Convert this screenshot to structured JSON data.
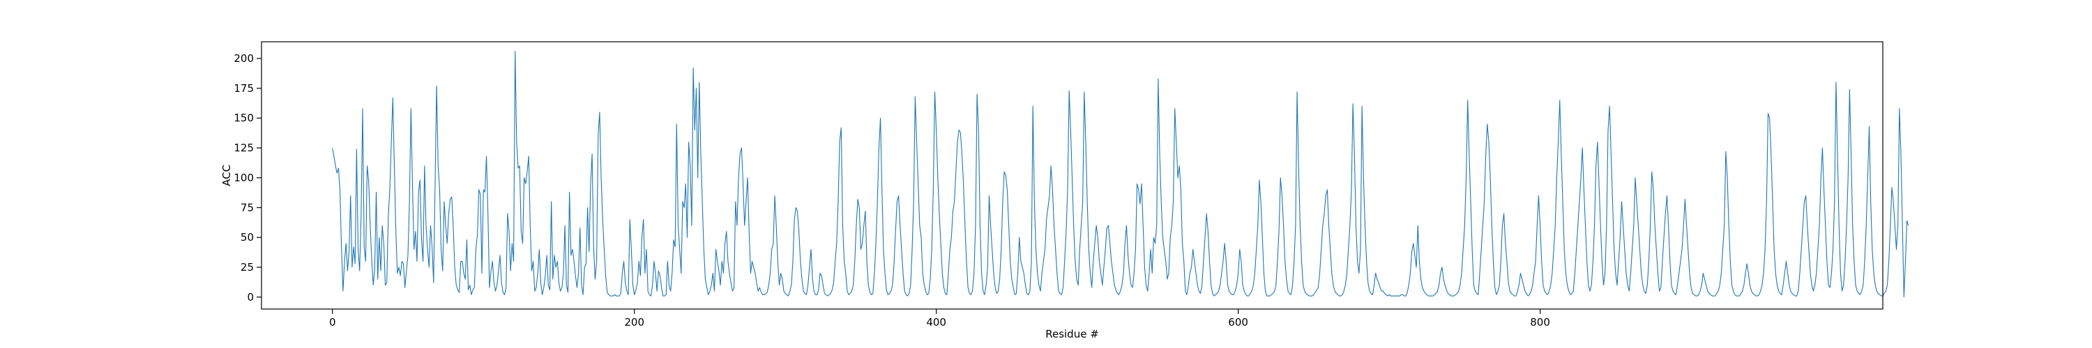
{
  "chart_data": {
    "type": "line",
    "title": "",
    "xlabel": "Residue #",
    "ylabel": "ACC",
    "xlim": [
      -47,
      1027
    ],
    "ylim": [
      -10,
      214
    ],
    "xticks": [
      0,
      200,
      400,
      600,
      800
    ],
    "yticks": [
      0,
      25,
      50,
      75,
      100,
      125,
      150,
      175,
      200
    ],
    "xtick_labels": [
      "0",
      "200",
      "400",
      "600",
      "800"
    ],
    "ytick_labels": [
      "0",
      "25",
      "50",
      "75",
      "100",
      "125",
      "150",
      "175",
      "200"
    ],
    "grid": false,
    "legend": "none",
    "series": [
      {
        "color": "#1f77b4",
        "x_start": 0,
        "x_step": 1,
        "values": [
          125,
          118,
          110,
          104,
          108,
          88,
          40,
          5,
          30,
          45,
          22,
          38,
          85,
          25,
          42,
          28,
          124,
          40,
          22,
          70,
          158,
          42,
          30,
          110,
          97,
          60,
          32,
          10,
          24,
          88,
          15,
          50,
          22,
          60,
          45,
          10,
          12,
          68,
          90,
          130,
          167,
          110,
          55,
          20,
          25,
          18,
          30,
          28,
          8,
          22,
          35,
          80,
          158,
          95,
          40,
          55,
          30,
          88,
          98,
          48,
          30,
          110,
          60,
          40,
          25,
          60,
          42,
          12,
          96,
          177,
          110,
          90,
          40,
          22,
          80,
          60,
          45,
          70,
          82,
          84,
          60,
          25,
          10,
          6,
          4,
          30,
          30,
          20,
          15,
          48,
          6,
          10,
          2,
          6,
          8,
          40,
          52,
          90,
          86,
          20,
          90,
          88,
          118,
          70,
          8,
          22,
          30,
          12,
          5,
          10,
          22,
          35,
          12,
          4,
          2,
          8,
          70,
          55,
          22,
          45,
          30,
          206,
          130,
          108,
          110,
          55,
          45,
          100,
          95,
          105,
          118,
          60,
          22,
          30,
          5,
          8,
          20,
          40,
          12,
          2,
          8,
          18,
          35,
          10,
          6,
          80,
          15,
          35,
          25,
          30,
          12,
          5,
          8,
          20,
          60,
          10,
          4,
          88,
          35,
          40,
          30,
          18,
          8,
          20,
          58,
          10,
          2,
          25,
          28,
          75,
          38,
          95,
          120,
          42,
          15,
          30,
          135,
          155,
          100,
          65,
          40,
          18,
          4,
          2,
          1,
          1,
          1,
          2,
          1,
          1,
          1,
          3,
          20,
          30,
          12,
          5,
          2,
          65,
          40,
          10,
          2,
          6,
          12,
          30,
          18,
          50,
          65,
          20,
          40,
          5,
          2,
          1,
          10,
          30,
          20,
          5,
          22,
          18,
          8,
          1,
          1,
          2,
          30,
          10,
          5,
          20,
          48,
          42,
          145,
          60,
          40,
          20,
          80,
          75,
          95,
          50,
          130,
          110,
          60,
          192,
          140,
          175,
          100,
          180,
          120,
          80,
          40,
          15,
          8,
          2,
          5,
          10,
          20,
          5,
          40,
          30,
          22,
          10,
          30,
          20,
          45,
          55,
          30,
          20,
          12,
          5,
          8,
          80,
          60,
          100,
          120,
          125,
          95,
          60,
          80,
          100,
          55,
          20,
          30,
          25,
          20,
          12,
          5,
          8,
          4,
          2,
          2,
          3,
          4,
          10,
          20,
          40,
          45,
          85,
          60,
          30,
          10,
          20,
          15,
          5,
          3,
          2,
          1,
          5,
          10,
          30,
          65,
          75,
          72,
          55,
          30,
          15,
          5,
          3,
          2,
          10,
          25,
          40,
          15,
          5,
          2,
          2,
          6,
          20,
          18,
          10,
          3,
          2,
          1,
          2,
          3,
          6,
          12,
          30,
          45,
          80,
          130,
          142,
          60,
          30,
          20,
          5,
          2,
          3,
          5,
          10,
          30,
          60,
          82,
          75,
          40,
          45,
          60,
          72,
          30,
          10,
          4,
          2,
          3,
          20,
          45,
          80,
          125,
          150,
          90,
          40,
          20,
          6,
          2,
          3,
          5,
          10,
          28,
          55,
          80,
          85,
          60,
          40,
          20,
          5,
          2,
          1,
          3,
          10,
          40,
          80,
          168,
          130,
          95,
          60,
          50,
          20,
          10,
          5,
          2,
          3,
          15,
          40,
          90,
          172,
          140,
          100,
          70,
          45,
          20,
          8,
          3,
          2,
          20,
          40,
          50,
          72,
          80,
          105,
          130,
          140,
          138,
          120,
          95,
          60,
          30,
          8,
          3,
          2,
          5,
          20,
          60,
          170,
          140,
          60,
          20,
          5,
          2,
          10,
          25,
          85,
          60,
          40,
          20,
          8,
          3,
          5,
          15,
          40,
          80,
          105,
          102,
          90,
          60,
          30,
          15,
          8,
          2,
          3,
          20,
          50,
          30,
          25,
          20,
          10,
          3,
          2,
          5,
          30,
          160,
          80,
          40,
          20,
          10,
          5,
          20,
          30,
          40,
          65,
          75,
          85,
          110,
          90,
          60,
          40,
          20,
          5,
          3,
          2,
          8,
          30,
          55,
          90,
          173,
          140,
          100,
          60,
          30,
          15,
          10,
          40,
          60,
          80,
          172,
          130,
          80,
          40,
          20,
          8,
          30,
          45,
          60,
          50,
          30,
          20,
          10,
          25,
          40,
          58,
          60,
          45,
          30,
          20,
          10,
          6,
          3,
          2,
          5,
          10,
          20,
          45,
          60,
          35,
          20,
          10,
          8,
          20,
          40,
          95,
          90,
          78,
          95,
          60,
          25,
          10,
          5,
          20,
          40,
          20,
          50,
          45,
          60,
          183,
          120,
          80,
          50,
          40,
          30,
          15,
          20,
          50,
          60,
          80,
          158,
          130,
          100,
          110,
          90,
          45,
          30,
          5,
          2,
          10,
          20,
          25,
          40,
          30,
          20,
          10,
          5,
          3,
          10,
          30,
          50,
          70,
          55,
          30,
          10,
          3,
          1,
          2,
          3,
          5,
          10,
          20,
          30,
          45,
          30,
          10,
          5,
          3,
          2,
          2,
          5,
          10,
          20,
          40,
          30,
          10,
          5,
          2,
          1,
          1,
          3,
          5,
          10,
          20,
          40,
          60,
          98,
          80,
          50,
          20,
          5,
          1,
          1,
          1,
          2,
          3,
          5,
          10,
          30,
          55,
          100,
          85,
          60,
          30,
          15,
          5,
          3,
          2,
          10,
          30,
          60,
          172,
          110,
          60,
          30,
          10,
          5,
          3,
          2,
          1,
          1,
          1,
          2,
          4,
          6,
          8,
          20,
          40,
          60,
          70,
          85,
          90,
          60,
          40,
          20,
          10,
          5,
          3,
          2,
          1,
          1,
          2,
          5,
          10,
          20,
          40,
          60,
          90,
          162,
          120,
          60,
          30,
          20,
          40,
          160,
          100,
          60,
          30,
          12,
          5,
          3,
          2,
          10,
          20,
          15,
          12,
          8,
          5,
          5,
          3,
          2,
          1,
          2,
          1,
          1,
          1,
          1,
          1,
          1,
          1,
          2,
          2,
          1,
          1,
          4,
          10,
          20,
          38,
          45,
          35,
          25,
          60,
          30,
          15,
          8,
          5,
          3,
          2,
          1,
          1,
          1,
          1,
          2,
          3,
          5,
          10,
          20,
          25,
          15,
          10,
          6,
          3,
          2,
          1,
          1,
          1,
          2,
          3,
          5,
          10,
          20,
          40,
          60,
          100,
          165,
          120,
          80,
          40,
          10,
          5,
          3,
          2,
          20,
          40,
          60,
          80,
          120,
          145,
          130,
          100,
          60,
          30,
          8,
          2,
          5,
          10,
          30,
          60,
          70,
          45,
          30,
          12,
          5,
          3,
          2,
          1,
          1,
          5,
          10,
          20,
          15,
          10,
          5,
          3,
          1,
          2,
          5,
          10,
          20,
          30,
          60,
          85,
          60,
          30,
          10,
          5,
          3,
          2,
          5,
          10,
          20,
          40,
          60,
          100,
          130,
          165,
          120,
          80,
          40,
          20,
          10,
          5,
          2,
          3,
          5,
          20,
          40,
          60,
          80,
          100,
          125,
          90,
          60,
          30,
          10,
          5,
          10,
          30,
          60,
          110,
          130,
          95,
          60,
          30,
          10,
          20,
          60,
          140,
          160,
          120,
          80,
          40,
          20,
          10,
          30,
          50,
          80,
          60,
          40,
          20,
          10,
          5,
          20,
          40,
          60,
          100,
          80,
          60,
          40,
          20,
          10,
          5,
          3,
          10,
          30,
          60,
          105,
          90,
          60,
          40,
          20,
          5,
          8,
          30,
          50,
          70,
          85,
          60,
          30,
          10,
          5,
          3,
          2,
          10,
          20,
          30,
          40,
          60,
          82,
          60,
          40,
          20,
          8,
          3,
          2,
          1,
          1,
          2,
          5,
          10,
          20,
          15,
          10,
          5,
          3,
          2,
          1,
          1,
          1,
          3,
          5,
          10,
          20,
          40,
          60,
          122,
          100,
          60,
          30,
          10,
          5,
          2,
          1,
          1,
          1,
          3,
          5,
          10,
          20,
          28,
          20,
          10,
          5,
          3,
          2,
          1,
          1,
          2,
          5,
          10,
          20,
          40,
          80,
          154,
          150,
          120,
          80,
          40,
          20,
          10,
          5,
          3,
          2,
          10,
          20,
          30,
          20,
          10,
          5,
          3,
          2,
          1,
          1,
          5,
          20,
          40,
          60,
          80,
          85,
          60,
          40,
          20,
          10,
          5,
          10,
          20,
          40,
          60,
          100,
          125,
          90,
          60,
          30,
          10,
          8,
          20,
          40,
          80,
          180,
          120,
          60,
          20,
          5,
          10,
          30,
          60,
          100,
          174,
          120,
          60,
          30,
          10,
          5,
          3,
          2,
          5,
          10,
          30,
          60,
          100,
          143,
          80,
          40,
          20,
          10,
          5,
          3,
          2,
          1,
          1,
          3,
          5,
          10,
          30,
          60,
          92,
          80,
          60,
          40,
          60,
          158,
          120,
          60,
          0,
          30,
          64,
          60
        ]
      }
    ]
  }
}
